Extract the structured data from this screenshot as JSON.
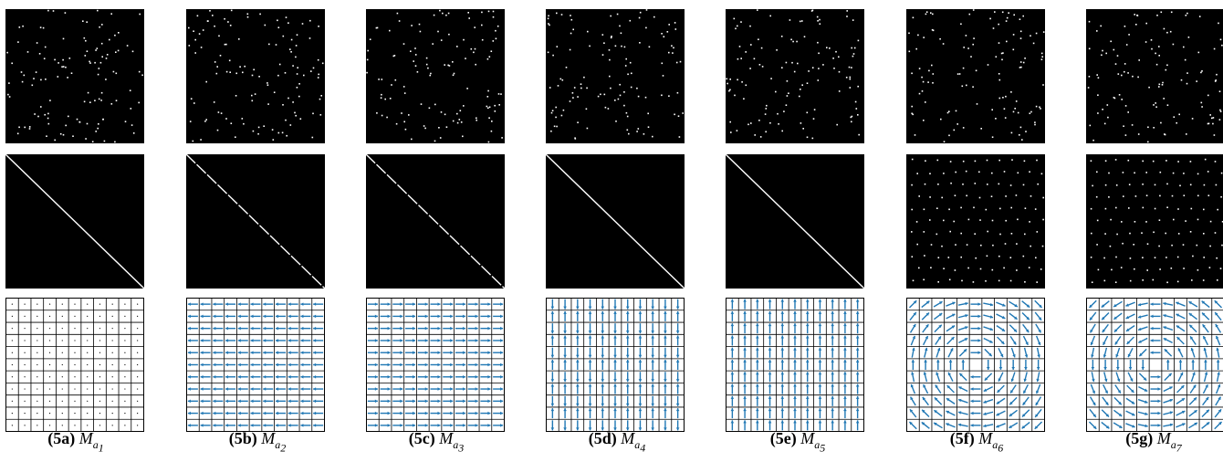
{
  "figure": {
    "colors": {
      "matrix_background": "#000000",
      "matrix_entry": "#ffffff",
      "arrow": "#1f77b4",
      "grid_line": "#000000"
    },
    "columns": [
      {
        "id": "5a",
        "label": "(5a)",
        "symbol": "M",
        "sub": "a",
        "subsub": "1",
        "top": "random-sparse-permutation",
        "middle": "diagonal",
        "bottom": "none"
      },
      {
        "id": "5b",
        "label": "(5b)",
        "symbol": "M",
        "sub": "a",
        "subsub": "2",
        "top": "random-sparse-permutation",
        "middle": "diagonal-dashed",
        "bottom": "horizontal-left"
      },
      {
        "id": "5c",
        "label": "(5c)",
        "symbol": "M",
        "sub": "a",
        "subsub": "3",
        "top": "random-sparse-permutation",
        "middle": "diagonal-dashed",
        "bottom": "horizontal-right"
      },
      {
        "id": "5d",
        "label": "(5d)",
        "symbol": "M",
        "sub": "a",
        "subsub": "4",
        "top": "random-sparse-permutation",
        "middle": "diagonal",
        "bottom": "vertical-both"
      },
      {
        "id": "5e",
        "label": "(5e)",
        "symbol": "M",
        "sub": "a",
        "subsub": "5",
        "top": "random-sparse-permutation",
        "middle": "diagonal",
        "bottom": "vertical-up"
      },
      {
        "id": "5f",
        "label": "(5f)",
        "symbol": "M",
        "sub": "a",
        "subsub": "6",
        "top": "random-sparse-permutation",
        "middle": "lattice",
        "bottom": "rotation-ccw"
      },
      {
        "id": "5g",
        "label": "(5g)",
        "symbol": "M",
        "sub": "a",
        "subsub": "7",
        "top": "random-sparse-permutation",
        "middle": "lattice",
        "bottom": "rotation-cw"
      }
    ]
  }
}
